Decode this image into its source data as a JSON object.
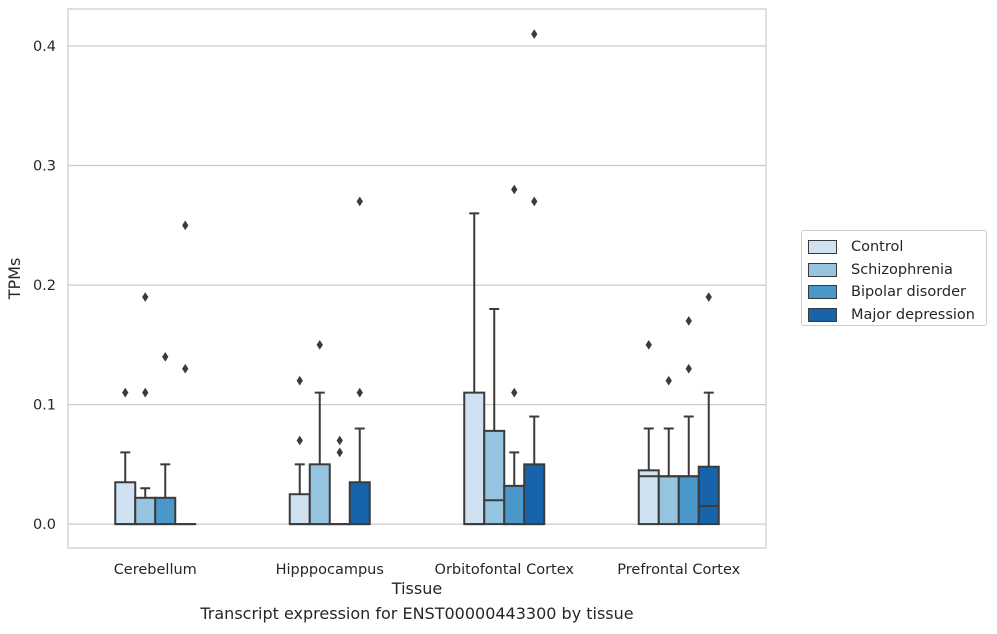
{
  "chart_data": {
    "type": "box",
    "title": "",
    "caption": "Transcript expression for ENST00000443300 by tissue",
    "xlabel": "Tissue",
    "ylabel": "TPMs",
    "ylim": [
      -0.02,
      0.431
    ],
    "yticks": [
      0.0,
      0.1,
      0.2,
      0.3,
      0.4
    ],
    "ytick_labels": [
      "0.0",
      "0.1",
      "0.2",
      "0.3",
      "0.4"
    ],
    "grid": true,
    "legend_position": "right",
    "categories": [
      "Cerebellum",
      "Hipppocampus",
      "Orbitofontal Cortex",
      "Prefrontal Cortex"
    ],
    "series": [
      {
        "name": "Control",
        "color": "#d0e1f2",
        "boxes": [
          {
            "q1": 0,
            "median": 0,
            "q3": 0.035,
            "whisker_low": 0,
            "whisker_high": 0.06,
            "outliers": [
              0.11
            ]
          },
          {
            "q1": 0,
            "median": 0,
            "q3": 0.025,
            "whisker_low": 0,
            "whisker_high": 0.05,
            "outliers": [
              0.07,
              0.12
            ]
          },
          {
            "q1": 0,
            "median": 0,
            "q3": 0.11,
            "whisker_low": 0,
            "whisker_high": 0.26,
            "outliers": []
          },
          {
            "q1": 0,
            "median": 0.04,
            "q3": 0.045,
            "whisker_low": 0,
            "whisker_high": 0.08,
            "outliers": [
              0.15
            ]
          }
        ]
      },
      {
        "name": "Schizophrenia",
        "color": "#94c4df",
        "boxes": [
          {
            "q1": 0,
            "median": 0,
            "q3": 0.022,
            "whisker_low": 0,
            "whisker_high": 0.03,
            "outliers": [
              0.11,
              0.19
            ]
          },
          {
            "q1": 0,
            "median": 0,
            "q3": 0.05,
            "whisker_low": 0,
            "whisker_high": 0.11,
            "outliers": [
              0.15
            ]
          },
          {
            "q1": 0,
            "median": 0.02,
            "q3": 0.078,
            "whisker_low": 0,
            "whisker_high": 0.18,
            "outliers": []
          },
          {
            "q1": 0,
            "median": 0.04,
            "q3": 0.04,
            "whisker_low": 0,
            "whisker_high": 0.08,
            "outliers": [
              0.12
            ]
          }
        ]
      },
      {
        "name": "Bipolar disorder",
        "color": "#4a98c9",
        "boxes": [
          {
            "q1": 0,
            "median": 0,
            "q3": 0.022,
            "whisker_low": 0,
            "whisker_high": 0.05,
            "outliers": [
              0.14
            ]
          },
          {
            "q1": 0,
            "median": 0,
            "q3": 0,
            "whisker_low": 0,
            "whisker_high": 0,
            "outliers": [
              0.06,
              0.07
            ]
          },
          {
            "q1": 0,
            "median": 0,
            "q3": 0.032,
            "whisker_low": 0,
            "whisker_high": 0.06,
            "outliers": [
              0.11,
              0.28
            ]
          },
          {
            "q1": 0,
            "median": 0.04,
            "q3": 0.04,
            "whisker_low": 0,
            "whisker_high": 0.09,
            "outliers": [
              0.13,
              0.17
            ]
          }
        ]
      },
      {
        "name": "Major depression",
        "color": "#1764ab",
        "boxes": [
          {
            "q1": 0,
            "median": 0,
            "q3": 0,
            "whisker_low": 0,
            "whisker_high": 0,
            "outliers": [
              0.13,
              0.25
            ]
          },
          {
            "q1": 0,
            "median": 0,
            "q3": 0.035,
            "whisker_low": 0,
            "whisker_high": 0.08,
            "outliers": [
              0.11,
              0.27
            ]
          },
          {
            "q1": 0,
            "median": 0,
            "q3": 0.05,
            "whisker_low": 0,
            "whisker_high": 0.09,
            "outliers": [
              0.27,
              0.41
            ]
          },
          {
            "q1": 0,
            "median": 0.015,
            "q3": 0.048,
            "whisker_low": 0,
            "whisker_high": 0.11,
            "outliers": [
              0.19
            ]
          }
        ]
      }
    ]
  }
}
